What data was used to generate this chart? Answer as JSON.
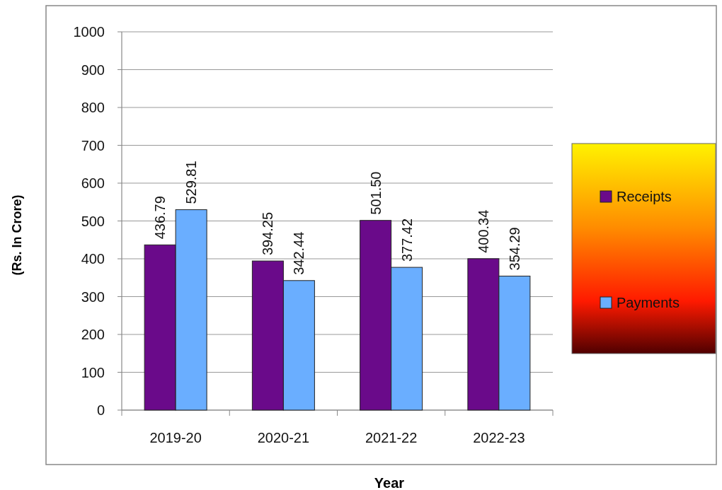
{
  "chart_data": {
    "type": "bar",
    "xlabel": "Year",
    "ylabel": "(Rs. In Crore)",
    "categories": [
      "2019-20",
      "2020-21",
      "2021-22",
      "2022-23"
    ],
    "series": [
      {
        "name": "Receipts",
        "color": "#6a0a8a",
        "values": [
          436.79,
          394.25,
          501.5,
          400.34
        ],
        "value_labels": [
          "436.79",
          "394.25",
          "501.50",
          "400.34"
        ]
      },
      {
        "name": "Payments",
        "color": "#6aaeff",
        "values": [
          529.81,
          342.44,
          377.42,
          354.29
        ],
        "value_labels": [
          "529.81",
          "342.44",
          "377.42",
          "354.29"
        ]
      }
    ],
    "ylim": [
      0,
      1000
    ],
    "yticks": [
      0,
      100,
      200,
      300,
      400,
      500,
      600,
      700,
      800,
      900,
      1000
    ],
    "grid": "y",
    "legend": "right"
  }
}
